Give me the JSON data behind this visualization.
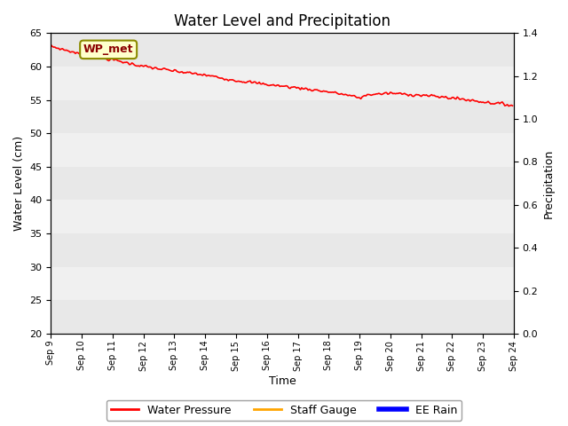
{
  "title": "Water Level and Precipitation",
  "xlabel": "Time",
  "ylabel_left": "Water Level (cm)",
  "ylabel_right": "Precipitation",
  "annotation_text": "WP_met",
  "ylim_left": [
    20,
    65
  ],
  "ylim_right": [
    0.0,
    1.4
  ],
  "yticks_left": [
    20,
    25,
    30,
    35,
    40,
    45,
    50,
    55,
    60,
    65
  ],
  "yticks_right": [
    0.0,
    0.2,
    0.4,
    0.6,
    0.8,
    1.0,
    1.2,
    1.4
  ],
  "xtick_labels": [
    "Sep 9",
    "Sep 10",
    "Sep 11",
    "Sep 12",
    "Sep 13",
    "Sep 14",
    "Sep 15",
    "Sep 16",
    "Sep 17",
    "Sep 18",
    "Sep 19",
    "Sep 20",
    "Sep 21",
    "Sep 22",
    "Sep 23",
    "Sep 24"
  ],
  "water_pressure_color": "#ff0000",
  "staff_gauge_color": "#ffa500",
  "ee_rain_color": "#0000ff",
  "legend_labels": [
    "Water Pressure",
    "Staff Gauge",
    "EE Rain"
  ],
  "title_fontsize": 12,
  "axis_label_fontsize": 9,
  "band_colors": [
    "#e8e8e8",
    "#f0f0f0"
  ],
  "annotation_facecolor": "#ffffcc",
  "annotation_edgecolor": "#8B8B00",
  "annotation_textcolor": "#8B0000"
}
